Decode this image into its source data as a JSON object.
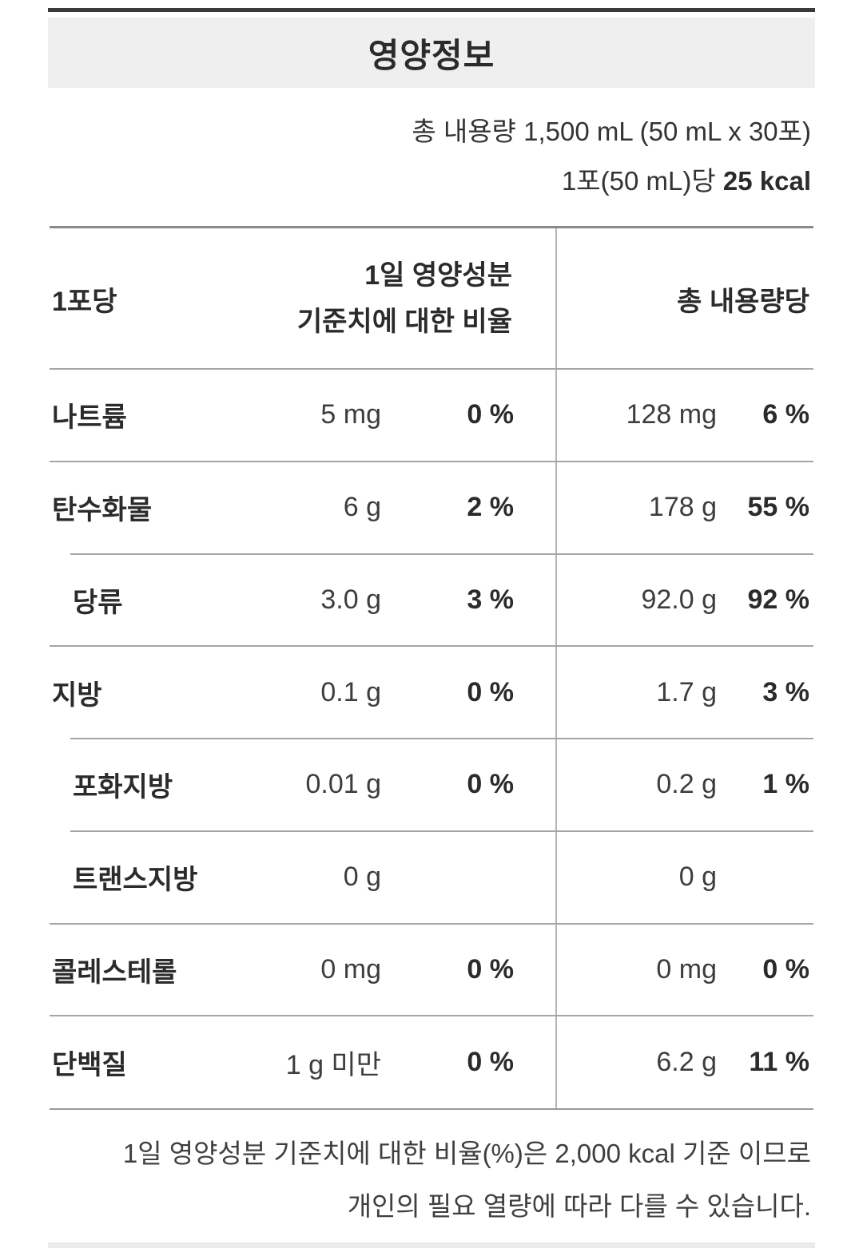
{
  "title": "영양정보",
  "serving_info": {
    "total_volume": "총 내용량 1,500 mL (50 mL x 30포)",
    "per_serving_prefix": "1포(50 mL)당 ",
    "per_serving_kcal": "25 kcal"
  },
  "table": {
    "col_serving": "1포당",
    "col_daily_line1": "1일 영양성분",
    "col_daily_line2": "기준치에 대한 비율",
    "col_total": "총 내용량당",
    "rows": [
      {
        "name": "나트륨",
        "indent": false,
        "sep_top": "full",
        "amount": "5 mg",
        "percent": "0 %",
        "total_amount": "128 mg",
        "total_percent": "6 %"
      },
      {
        "name": "탄수화물",
        "indent": false,
        "sep_top": "full",
        "amount": "6 g",
        "percent": "2 %",
        "total_amount": "178 g",
        "total_percent": "55 %"
      },
      {
        "name": "당류",
        "indent": true,
        "sep_top": "indent",
        "amount": "3.0 g",
        "percent": "3 %",
        "total_amount": "92.0 g",
        "total_percent": "92 %"
      },
      {
        "name": "지방",
        "indent": false,
        "sep_top": "full",
        "amount": "0.1 g",
        "percent": "0 %",
        "total_amount": "1.7 g",
        "total_percent": "3 %"
      },
      {
        "name": "포화지방",
        "indent": true,
        "sep_top": "indent",
        "amount": "0.01 g",
        "percent": "0 %",
        "total_amount": "0.2 g",
        "total_percent": "1 %"
      },
      {
        "name": "트랜스지방",
        "indent": true,
        "sep_top": "indent",
        "amount": "0 g",
        "percent": "",
        "total_amount": "0 g",
        "total_percent": ""
      },
      {
        "name": "콜레스테롤",
        "indent": false,
        "sep_top": "full",
        "amount": "0 mg",
        "percent": "0 %",
        "total_amount": "0 mg",
        "total_percent": "0 %"
      },
      {
        "name": "단백질",
        "indent": false,
        "sep_top": "full",
        "amount": "1 g 미만",
        "percent": "0 %",
        "total_amount": "6.2 g",
        "total_percent": "11 %"
      }
    ]
  },
  "footnote": {
    "line1": "1일 영양성분 기준치에 대한 비율(%)은 2,000 kcal 기준 이므로",
    "line2": "개인의 필요 열량에 따라 다를 수 있습니다."
  },
  "colors": {
    "text": "#333333",
    "text_bold": "#2b2b2b",
    "header_box": "#efeff0",
    "top_rule": "#3a3a3a",
    "row_line": "#a5a5a5",
    "table_top_line": "#8a8a8a",
    "column_divider": "#b5b5b5",
    "bottom_band": "#ebebeb"
  }
}
